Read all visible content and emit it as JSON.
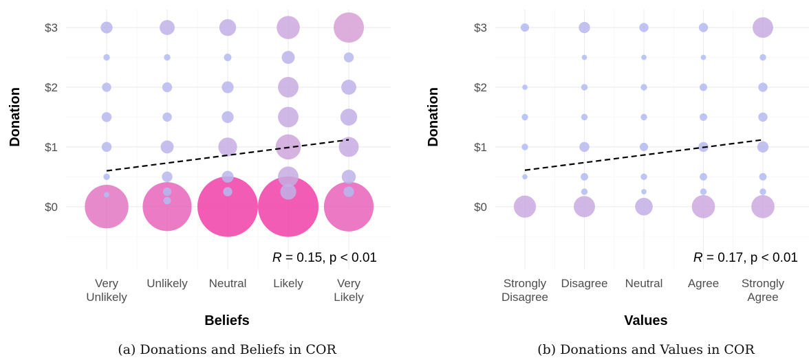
{
  "colors": {
    "low": "#a7c4fb",
    "mid": "#d79fd6",
    "high": "#f03fa8",
    "trend": "#000000"
  },
  "chart_data": [
    {
      "type": "scatter",
      "caption": "(a) Donations and Beliefs in COR",
      "xlabel": "Beliefs",
      "ylabel": "Donation",
      "categories": [
        "Very\nUnlikely",
        "Unlikely",
        "Neutral",
        "Likely",
        "Very\nLikely"
      ],
      "y_ticks": [
        0,
        1,
        2,
        3
      ],
      "y_tick_labels": [
        "$0",
        "$1",
        "$2",
        "$3"
      ],
      "ylim": [
        -1.05,
        3.3
      ],
      "grid": true,
      "annotation": {
        "r_symbol": "R",
        "text": " = 0.15, p < 0.01"
      },
      "trend": {
        "x": [
          1,
          5
        ],
        "y": [
          0.6,
          1.12
        ]
      },
      "points": [
        {
          "x": 1,
          "y": 3.0,
          "n": 10
        },
        {
          "x": 1,
          "y": 2.5,
          "n": 3
        },
        {
          "x": 1,
          "y": 2.0,
          "n": 6
        },
        {
          "x": 1,
          "y": 1.5,
          "n": 7
        },
        {
          "x": 1,
          "y": 1.0,
          "n": 7
        },
        {
          "x": 1,
          "y": 0.5,
          "n": 3
        },
        {
          "x": 1,
          "y": 0.2,
          "n": 2
        },
        {
          "x": 1,
          "y": 0.0,
          "n": 135
        },
        {
          "x": 2,
          "y": 3.0,
          "n": 16
        },
        {
          "x": 2,
          "y": 2.5,
          "n": 3
        },
        {
          "x": 2,
          "y": 2.0,
          "n": 7
        },
        {
          "x": 2,
          "y": 1.5,
          "n": 6
        },
        {
          "x": 2,
          "y": 1.0,
          "n": 12
        },
        {
          "x": 2,
          "y": 0.5,
          "n": 8
        },
        {
          "x": 2,
          "y": 0.25,
          "n": 5
        },
        {
          "x": 2,
          "y": 0.1,
          "n": 4
        },
        {
          "x": 2,
          "y": 0.0,
          "n": 170
        },
        {
          "x": 3,
          "y": 3.0,
          "n": 20
        },
        {
          "x": 3,
          "y": 2.5,
          "n": 4
        },
        {
          "x": 3,
          "y": 2.0,
          "n": 10
        },
        {
          "x": 3,
          "y": 1.5,
          "n": 10
        },
        {
          "x": 3,
          "y": 1.0,
          "n": 25
        },
        {
          "x": 3,
          "y": 0.5,
          "n": 10
        },
        {
          "x": 3,
          "y": 0.25,
          "n": 6
        },
        {
          "x": 3,
          "y": 0.0,
          "n": 260
        },
        {
          "x": 4,
          "y": 3.0,
          "n": 38
        },
        {
          "x": 4,
          "y": 2.5,
          "n": 12
        },
        {
          "x": 4,
          "y": 2.0,
          "n": 30
        },
        {
          "x": 4,
          "y": 1.5,
          "n": 30
        },
        {
          "x": 4,
          "y": 1.0,
          "n": 45
        },
        {
          "x": 4,
          "y": 0.5,
          "n": 30
        },
        {
          "x": 4,
          "y": 0.25,
          "n": 18
        },
        {
          "x": 4,
          "y": 0.0,
          "n": 260
        },
        {
          "x": 5,
          "y": 3.0,
          "n": 65
        },
        {
          "x": 5,
          "y": 2.5,
          "n": 7
        },
        {
          "x": 5,
          "y": 2.0,
          "n": 16
        },
        {
          "x": 5,
          "y": 1.5,
          "n": 20
        },
        {
          "x": 5,
          "y": 1.0,
          "n": 28
        },
        {
          "x": 5,
          "y": 0.5,
          "n": 14
        },
        {
          "x": 5,
          "y": 0.25,
          "n": 8
        },
        {
          "x": 5,
          "y": 0.0,
          "n": 175
        }
      ]
    },
    {
      "type": "scatter",
      "caption": "(b) Donations and Values in COR",
      "xlabel": "Values",
      "ylabel": "Donation",
      "categories": [
        "Strongly\nDisagree",
        "Disagree",
        "Neutral",
        "Agree",
        "Strongly\nAgree"
      ],
      "y_ticks": [
        0,
        1,
        2,
        3
      ],
      "y_tick_labels": [
        "$0",
        "$1",
        "$2",
        "$3"
      ],
      "ylim": [
        -1.05,
        3.3
      ],
      "grid": true,
      "annotation": {
        "r_symbol": "R",
        "text": " = 0.17, p < 0.01"
      },
      "trend": {
        "x": [
          1,
          5
        ],
        "y": [
          0.61,
          1.12
        ]
      },
      "points": [
        {
          "x": 1,
          "y": 3.0,
          "n": 5
        },
        {
          "x": 1,
          "y": 2.0,
          "n": 2
        },
        {
          "x": 1,
          "y": 1.5,
          "n": 3
        },
        {
          "x": 1,
          "y": 1.0,
          "n": 3
        },
        {
          "x": 1,
          "y": 0.5,
          "n": 2
        },
        {
          "x": 1,
          "y": 0.0,
          "n": 35
        },
        {
          "x": 2,
          "y": 3.0,
          "n": 9
        },
        {
          "x": 2,
          "y": 2.5,
          "n": 2
        },
        {
          "x": 2,
          "y": 2.0,
          "n": 3
        },
        {
          "x": 2,
          "y": 1.5,
          "n": 3
        },
        {
          "x": 2,
          "y": 1.0,
          "n": 7
        },
        {
          "x": 2,
          "y": 0.5,
          "n": 4
        },
        {
          "x": 2,
          "y": 0.25,
          "n": 3
        },
        {
          "x": 2,
          "y": 0.0,
          "n": 32
        },
        {
          "x": 3,
          "y": 3.0,
          "n": 6
        },
        {
          "x": 3,
          "y": 2.5,
          "n": 2
        },
        {
          "x": 3,
          "y": 2.0,
          "n": 3
        },
        {
          "x": 3,
          "y": 1.5,
          "n": 3
        },
        {
          "x": 3,
          "y": 1.0,
          "n": 5
        },
        {
          "x": 3,
          "y": 0.5,
          "n": 3
        },
        {
          "x": 3,
          "y": 0.25,
          "n": 2
        },
        {
          "x": 3,
          "y": 0.0,
          "n": 22
        },
        {
          "x": 4,
          "y": 3.0,
          "n": 6
        },
        {
          "x": 4,
          "y": 2.5,
          "n": 2
        },
        {
          "x": 4,
          "y": 2.0,
          "n": 4
        },
        {
          "x": 4,
          "y": 1.5,
          "n": 4
        },
        {
          "x": 4,
          "y": 1.0,
          "n": 7
        },
        {
          "x": 4,
          "y": 0.5,
          "n": 4
        },
        {
          "x": 4,
          "y": 0.25,
          "n": 3
        },
        {
          "x": 4,
          "y": 0.0,
          "n": 38
        },
        {
          "x": 5,
          "y": 3.0,
          "n": 30
        },
        {
          "x": 5,
          "y": 2.5,
          "n": 3
        },
        {
          "x": 5,
          "y": 2.0,
          "n": 6
        },
        {
          "x": 5,
          "y": 1.5,
          "n": 6
        },
        {
          "x": 5,
          "y": 1.0,
          "n": 9
        },
        {
          "x": 5,
          "y": 0.5,
          "n": 4
        },
        {
          "x": 5,
          "y": 0.25,
          "n": 3
        },
        {
          "x": 5,
          "y": 0.0,
          "n": 38
        }
      ]
    }
  ]
}
